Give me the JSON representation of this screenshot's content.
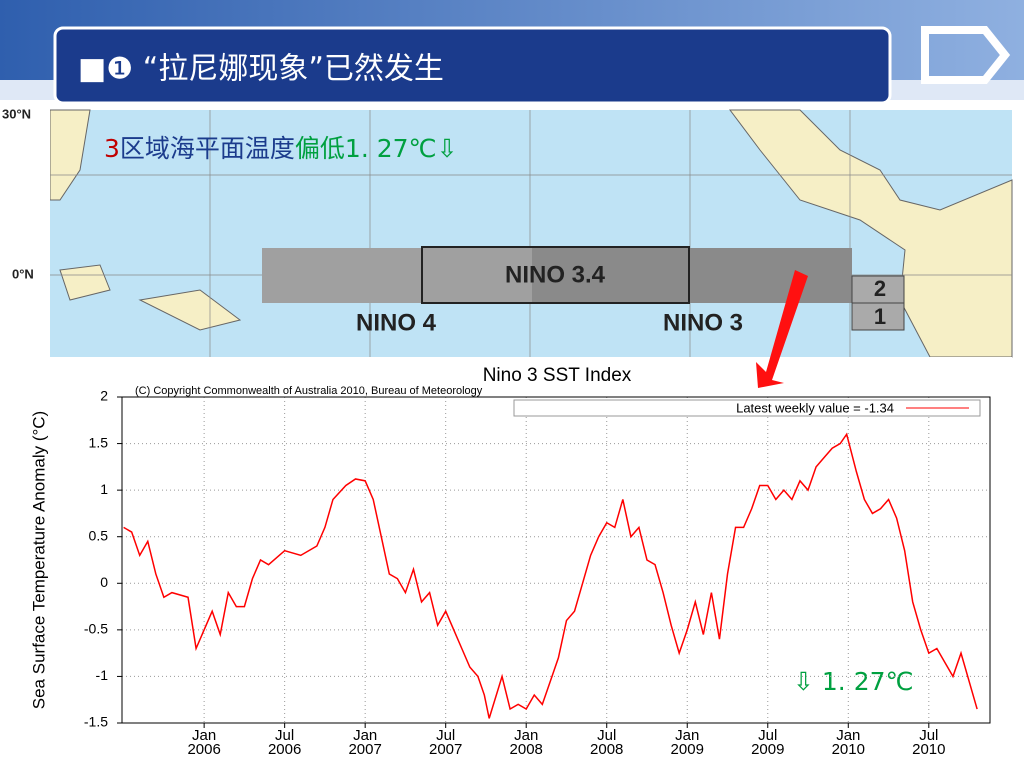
{
  "header": {
    "title": "■❶ “拉尼娜现象”已然发生"
  },
  "map": {
    "lat_labels": [
      "30°N",
      "0°N"
    ],
    "regions": [
      "NINO 3.4",
      "NINO 4",
      "NINO 3",
      "2",
      "1"
    ],
    "annotation": [
      "3",
      "区域海平面温度",
      "偏低1. 27℃⇩"
    ]
  },
  "chart_data": {
    "type": "line",
    "title": "Nino 3 SST Index",
    "subtitle": "(C) Copyright Commonwealth of Australia 2010, Bureau of Meteorology",
    "y_label": "Sea Surface Temperature Anomaly (°C)",
    "annotation": "⇩  1. 27℃",
    "legend": "top-right",
    "grid": true,
    "xlim": [
      2005.49,
      2010.88
    ],
    "ylim": [
      -1.5,
      2
    ],
    "yticks": [
      -1.5,
      -1,
      -0.5,
      0,
      0.5,
      1,
      1.5,
      2
    ],
    "xticks": [
      {
        "value": 2006,
        "label": "Jan 2006"
      },
      {
        "value": 2006.5,
        "label": "Jul 2006"
      },
      {
        "value": 2007,
        "label": "Jan 2007"
      },
      {
        "value": 2007.5,
        "label": "Jul 2007"
      },
      {
        "value": 2008,
        "label": "Jan 2008"
      },
      {
        "value": 2008.5,
        "label": "Jul 2008"
      },
      {
        "value": 2009,
        "label": "Jan 2009"
      },
      {
        "value": 2009.5,
        "label": "Jul 2009"
      },
      {
        "value": 2010,
        "label": "Jan 2010"
      },
      {
        "value": 2010.5,
        "label": "Jul 2010"
      }
    ],
    "series": [
      {
        "name": "Latest weekly value = -1.34",
        "color": "#ff0000",
        "x": [
          2005.5,
          2005.55,
          2005.6,
          2005.65,
          2005.7,
          2005.75,
          2005.8,
          2005.9,
          2005.95,
          2006,
          2006.05,
          2006.1,
          2006.15,
          2006.2,
          2006.25,
          2006.3,
          2006.35,
          2006.4,
          2006.5,
          2006.6,
          2006.7,
          2006.75,
          2006.8,
          2006.88,
          2006.94,
          2007,
          2007.05,
          2007.1,
          2007.15,
          2007.2,
          2007.25,
          2007.3,
          2007.35,
          2007.4,
          2007.45,
          2007.5,
          2007.55,
          2007.6,
          2007.65,
          2007.7,
          2007.74,
          2007.77,
          2007.85,
          2007.9,
          2007.95,
          2008,
          2008.05,
          2008.1,
          2008.15,
          2008.2,
          2008.25,
          2008.3,
          2008.35,
          2008.4,
          2008.45,
          2008.5,
          2008.55,
          2008.6,
          2008.65,
          2008.7,
          2008.75,
          2008.8,
          2008.85,
          2008.9,
          2008.95,
          2009,
          2009.05,
          2009.1,
          2009.15,
          2009.2,
          2009.25,
          2009.3,
          2009.35,
          2009.4,
          2009.45,
          2009.5,
          2009.55,
          2009.6,
          2009.65,
          2009.7,
          2009.75,
          2009.8,
          2009.85,
          2009.9,
          2009.95,
          2009.99,
          2010.05,
          2010.1,
          2010.15,
          2010.2,
          2010.25,
          2010.3,
          2010.35,
          2010.4,
          2010.45,
          2010.5,
          2010.55,
          2010.6,
          2010.65,
          2010.7,
          2010.8
        ],
        "values": [
          0.6,
          0.55,
          0.3,
          0.45,
          0.1,
          -0.15,
          -0.1,
          -0.15,
          -0.7,
          -0.5,
          -0.3,
          -0.55,
          -0.1,
          -0.25,
          -0.25,
          0.05,
          0.25,
          0.2,
          0.35,
          0.3,
          0.4,
          0.6,
          0.9,
          1.05,
          1.12,
          1.1,
          0.9,
          0.5,
          0.1,
          0.05,
          -0.1,
          0.15,
          -0.2,
          -0.1,
          -0.45,
          -0.3,
          -0.5,
          -0.7,
          -0.9,
          -1.0,
          -1.2,
          -1.45,
          -1.0,
          -1.35,
          -1.3,
          -1.35,
          -1.2,
          -1.3,
          -1.05,
          -0.8,
          -0.4,
          -0.3,
          0.0,
          0.3,
          0.5,
          0.65,
          0.6,
          0.9,
          0.5,
          0.6,
          0.25,
          0.2,
          -0.1,
          -0.45,
          -0.75,
          -0.5,
          -0.2,
          -0.55,
          -0.1,
          -0.6,
          0.1,
          0.6,
          0.6,
          0.8,
          1.05,
          1.05,
          0.9,
          1.0,
          0.9,
          1.1,
          1.0,
          1.25,
          1.35,
          1.45,
          1.5,
          1.6,
          1.2,
          0.9,
          0.75,
          0.8,
          0.9,
          0.7,
          0.35,
          -0.2,
          -0.5,
          -0.75,
          -0.7,
          -0.85,
          -1.0,
          -0.75,
          -1.35
        ]
      }
    ]
  }
}
